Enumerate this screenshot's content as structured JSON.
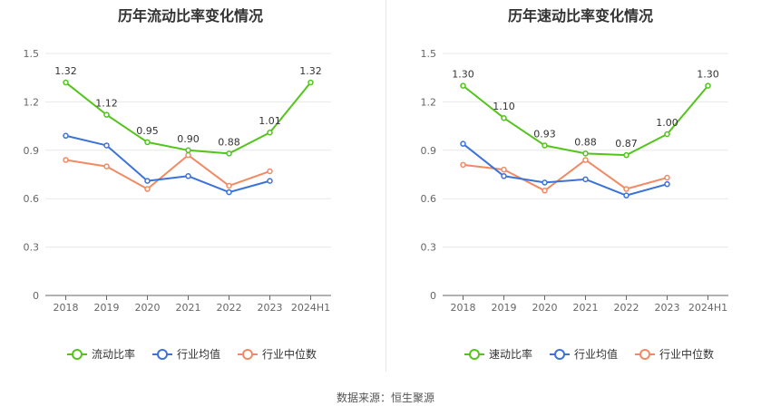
{
  "source": {
    "label": "数据来源：",
    "name": "恒生聚源"
  },
  "chart_data": [
    {
      "type": "line",
      "title": "历年流动比率变化情况",
      "categories": [
        "2018",
        "2019",
        "2020",
        "2021",
        "2022",
        "2023",
        "2024H1"
      ],
      "ylim": [
        0,
        1.5
      ],
      "yticks": [
        "0",
        "0.3",
        "0.6",
        "0.9",
        "1.2",
        "1.5"
      ],
      "grid": true,
      "legend_position": "bottom",
      "series": [
        {
          "name": "流动比率",
          "color": "#52c41a",
          "values": [
            1.32,
            1.12,
            0.95,
            0.9,
            0.88,
            1.01,
            1.32
          ],
          "labels": [
            "1.32",
            "1.12",
            "0.95",
            "0.90",
            "0.88",
            "1.01",
            "1.32"
          ]
        },
        {
          "name": "行业均值",
          "color": "#3b73d9",
          "values": [
            0.99,
            0.93,
            0.71,
            0.74,
            0.64,
            0.71,
            null
          ]
        },
        {
          "name": "行业中位数",
          "color": "#f08a63",
          "values": [
            0.84,
            0.8,
            0.66,
            0.87,
            0.68,
            0.77,
            null
          ]
        }
      ]
    },
    {
      "type": "line",
      "title": "历年速动比率变化情况",
      "categories": [
        "2018",
        "2019",
        "2020",
        "2021",
        "2022",
        "2023",
        "2024H1"
      ],
      "ylim": [
        0,
        1.5
      ],
      "yticks": [
        "0",
        "0.3",
        "0.6",
        "0.9",
        "1.2",
        "1.5"
      ],
      "grid": true,
      "legend_position": "bottom",
      "series": [
        {
          "name": "速动比率",
          "color": "#52c41a",
          "values": [
            1.3,
            1.1,
            0.93,
            0.88,
            0.87,
            1.0,
            1.3
          ],
          "labels": [
            "1.30",
            "1.10",
            "0.93",
            "0.88",
            "0.87",
            "1.00",
            "1.30"
          ]
        },
        {
          "name": "行业均值",
          "color": "#3b73d9",
          "values": [
            0.94,
            0.74,
            0.7,
            0.72,
            0.62,
            0.69,
            null
          ]
        },
        {
          "name": "行业中位数",
          "color": "#f08a63",
          "values": [
            0.81,
            0.78,
            0.65,
            0.84,
            0.66,
            0.73,
            null
          ]
        }
      ]
    }
  ]
}
